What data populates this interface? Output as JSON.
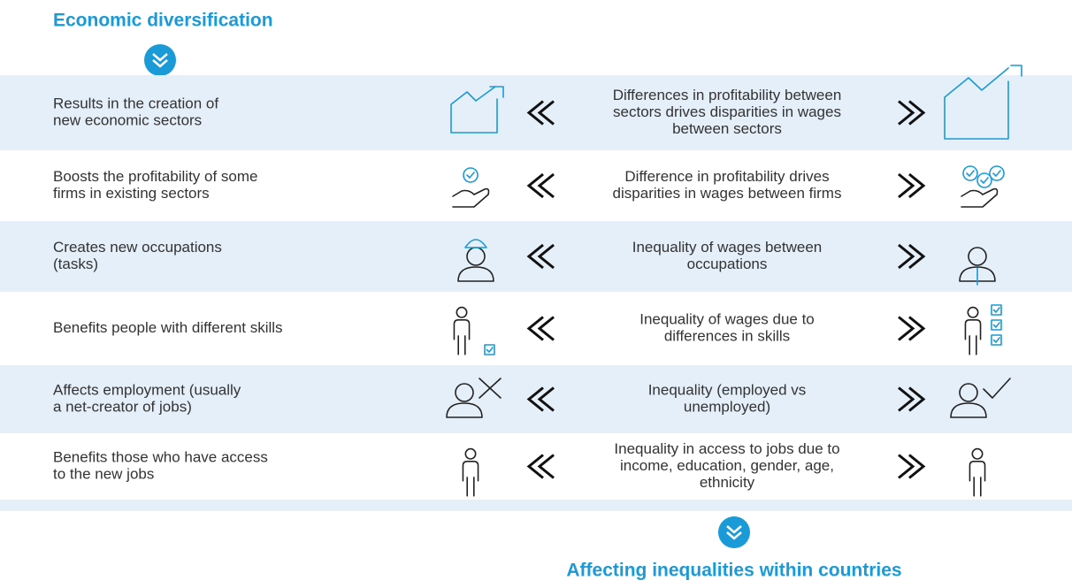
{
  "header": {
    "title": "Economic diversification"
  },
  "rows": [
    {
      "cause": [
        "Results in the creation of",
        "new economic sectors"
      ],
      "effect": [
        "Differences in profitability between",
        "sectors drives disparities in wages",
        "between sectors"
      ]
    },
    {
      "cause": [
        "Boosts the profitability of some",
        "firms in existing sectors"
      ],
      "effect": [
        "Difference in profitability drives",
        "disparities in wages between firms"
      ]
    },
    {
      "cause": [
        "Creates new occupations",
        "(tasks)"
      ],
      "effect": [
        "Inequality of wages between",
        "occupations"
      ]
    },
    {
      "cause": [
        "Benefits people with different skills"
      ],
      "effect": [
        "Inequality of wages due to",
        "differences in skills"
      ]
    },
    {
      "cause": [
        "Affects employment (usually",
        "a net-creator of jobs)"
      ],
      "effect": [
        "Inequality (employed vs",
        "unemployed)"
      ]
    },
    {
      "cause": [
        "Benefits those who have access",
        "to the new jobs"
      ],
      "effect": [
        "Inequality in access to jobs due to",
        "income, education, gender, age,",
        "ethnicity"
      ]
    }
  ],
  "footer": {
    "title": "Affecting inequalities within countries"
  }
}
